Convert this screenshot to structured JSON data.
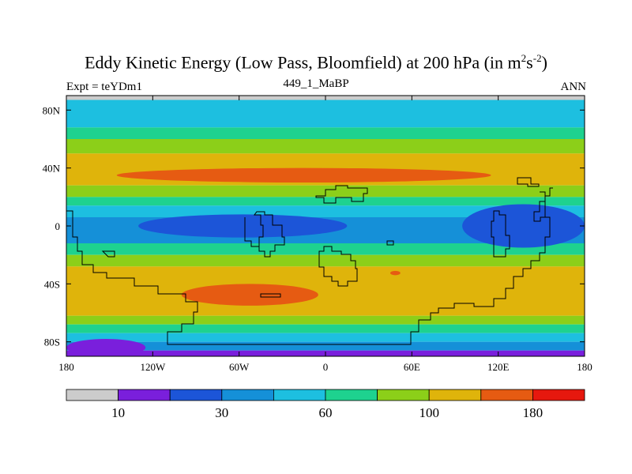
{
  "title": {
    "main": "Eddy Kinetic Energy (Low Pass, Bloomfield) at 200 hPa (in m",
    "sup1": "2",
    "mid": "s",
    "sup2": "-2",
    "close": ")"
  },
  "subtitle": {
    "left": "Expt = teYDm1",
    "center": "449_1_MaBP",
    "right": "ANN"
  },
  "chart_data": {
    "type": "heatmap",
    "map_type": "filled-contour world map (cylindrical equidistant)",
    "variable": "Eddy kinetic energy, low pass (Bloomfield) filter",
    "level": "200 hPa",
    "units": "m2 s-2",
    "xlim": [
      -180,
      180
    ],
    "ylim": [
      -90,
      90
    ],
    "x_ticks": [
      {
        "value": -180,
        "label": "180"
      },
      {
        "value": -120,
        "label": "120W"
      },
      {
        "value": -60,
        "label": "60W"
      },
      {
        "value": 0,
        "label": "0"
      },
      {
        "value": 60,
        "label": "60E"
      },
      {
        "value": 120,
        "label": "120E"
      },
      {
        "value": 180,
        "label": "180"
      }
    ],
    "y_ticks": [
      {
        "value": 80,
        "label": "80N"
      },
      {
        "value": 40,
        "label": "40N"
      },
      {
        "value": 0,
        "label": "0"
      },
      {
        "value": -40,
        "label": "40S"
      },
      {
        "value": -80,
        "label": "80S"
      }
    ],
    "contour_levels": [
      10,
      20,
      30,
      45,
      60,
      80,
      100,
      140,
      180
    ],
    "colorbar": {
      "colors": [
        "#cccccc",
        "#7a1fdc",
        "#1c55d8",
        "#1590d8",
        "#1dbfe0",
        "#1ed28f",
        "#8ccf19",
        "#dfb40b",
        "#e65b12",
        "#e6180e"
      ],
      "labels": [
        {
          "after_box": 1,
          "label": "10"
        },
        {
          "after_box": 3,
          "label": "30"
        },
        {
          "after_box": 5,
          "label": "60"
        },
        {
          "after_box": 7,
          "label": "100"
        },
        {
          "after_box": 9,
          "label": "180"
        }
      ]
    },
    "zonal_bands": [
      {
        "lat_from": 90,
        "lat_to": 87,
        "value": 5
      },
      {
        "lat_from": 87,
        "lat_to": 78,
        "value": 50
      },
      {
        "lat_from": 78,
        "lat_to": 68,
        "value": 55
      },
      {
        "lat_from": 68,
        "lat_to": 60,
        "value": 70
      },
      {
        "lat_from": 60,
        "lat_to": 50,
        "value": 90
      },
      {
        "lat_from": 50,
        "lat_to": 42,
        "value": 120
      },
      {
        "lat_from": 42,
        "lat_to": 28,
        "value": 120
      },
      {
        "lat_from": 28,
        "lat_to": 20,
        "value": 90
      },
      {
        "lat_from": 20,
        "lat_to": 14,
        "value": 70
      },
      {
        "lat_from": 14,
        "lat_to": 6,
        "value": 50
      },
      {
        "lat_from": 6,
        "lat_to": -12,
        "value": 35
      },
      {
        "lat_from": -12,
        "lat_to": -20,
        "value": 70
      },
      {
        "lat_from": -20,
        "lat_to": -28,
        "value": 90
      },
      {
        "lat_from": -28,
        "lat_to": -62,
        "value": 120
      },
      {
        "lat_from": -62,
        "lat_to": -68,
        "value": 90
      },
      {
        "lat_from": -68,
        "lat_to": -74,
        "value": 70
      },
      {
        "lat_from": -74,
        "lat_to": -80,
        "value": 50
      },
      {
        "lat_from": -80,
        "lat_to": -86,
        "value": 30
      },
      {
        "lat_from": -86,
        "lat_to": -90,
        "value": 15
      }
    ],
    "anomalies": [
      {
        "feature": "NH storm track maximum",
        "lon": [
          -145,
          115
        ],
        "lat": [
          30,
          40
        ],
        "value": 150
      },
      {
        "feature": "SH storm track maximum",
        "lon": [
          -100,
          -5
        ],
        "lat": [
          -55,
          -40
        ],
        "value": 150
      },
      {
        "feature": "small maximum",
        "lon": [
          45,
          52
        ],
        "lat": [
          -34,
          -31
        ],
        "value": 150
      },
      {
        "feature": "equatorial Pacific minimum",
        "lon": [
          95,
          180
        ],
        "lat": [
          -15,
          15
        ],
        "value": 20
      },
      {
        "feature": "equatorial Atlantic minimum",
        "lon": [
          -130,
          15
        ],
        "lat": [
          -8,
          8
        ],
        "value": 25
      },
      {
        "feature": "southern polar minimum",
        "lon": [
          -180,
          -125
        ],
        "lat": [
          -90,
          -78
        ],
        "value": 15
      }
    ]
  }
}
